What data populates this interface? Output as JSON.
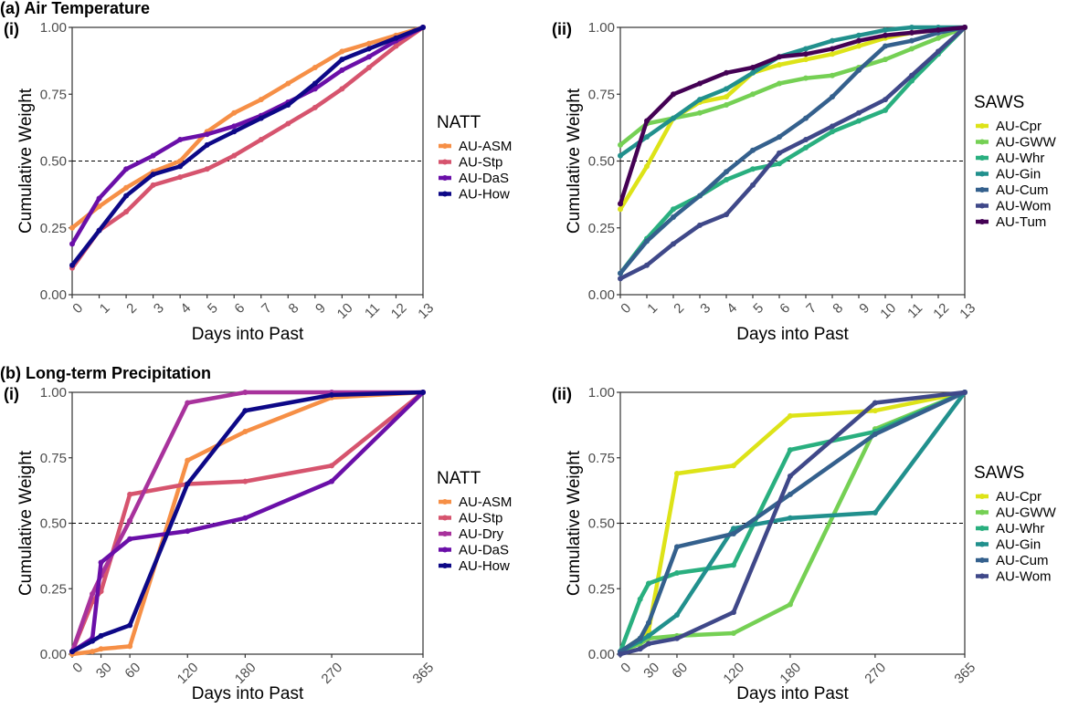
{
  "figure": {
    "section_a_title": "(a) Air Temperature",
    "section_b_title": "(b) Long-term Precipitation"
  },
  "chart_data": [
    {
      "id": "a-i",
      "type": "line",
      "panel_label": "(i)",
      "section": "(a) Air Temperature",
      "xlabel": "Days into Past",
      "ylabel": "Cumulative Weight",
      "xlim": [
        0,
        13
      ],
      "ylim": [
        0,
        1
      ],
      "xticks": [
        0,
        1,
        2,
        3,
        4,
        5,
        6,
        7,
        8,
        9,
        10,
        11,
        12,
        13
      ],
      "xtick_labels": [
        "0",
        "1",
        "2",
        "3",
        "4",
        "5",
        "6",
        "7",
        "8",
        "9",
        "10",
        "11",
        "12",
        "13"
      ],
      "yticks": [
        0,
        0.25,
        0.5,
        0.75,
        1.0
      ],
      "ytick_labels": [
        "0.00",
        "0.25",
        "0.50",
        "0.75",
        "1.00"
      ],
      "reference_line": {
        "y": 0.5,
        "style": "dashed"
      },
      "grid": false,
      "legend": {
        "title": "NATT",
        "position": "right"
      },
      "x": [
        0,
        1,
        2,
        3,
        4,
        5,
        6,
        7,
        8,
        9,
        10,
        11,
        12,
        13
      ],
      "series": [
        {
          "name": "AU-ASM",
          "color": "#f68f46",
          "values": [
            0.25,
            0.33,
            0.4,
            0.46,
            0.5,
            0.61,
            0.68,
            0.73,
            0.79,
            0.85,
            0.91,
            0.94,
            0.97,
            1.0
          ]
        },
        {
          "name": "AU-Stp",
          "color": "#d6546e",
          "values": [
            0.1,
            0.24,
            0.31,
            0.41,
            0.44,
            0.47,
            0.52,
            0.58,
            0.64,
            0.7,
            0.77,
            0.85,
            0.93,
            1.0
          ]
        },
        {
          "name": "AU-DaS",
          "color": "#6a0fa8",
          "values": [
            0.19,
            0.36,
            0.47,
            0.52,
            0.58,
            0.6,
            0.63,
            0.67,
            0.72,
            0.77,
            0.84,
            0.89,
            0.95,
            1.0
          ]
        },
        {
          "name": "AU-How",
          "color": "#0d0887",
          "values": [
            0.11,
            0.24,
            0.37,
            0.45,
            0.48,
            0.56,
            0.61,
            0.66,
            0.71,
            0.79,
            0.88,
            0.92,
            0.96,
            1.0
          ]
        }
      ]
    },
    {
      "id": "a-ii",
      "type": "line",
      "panel_label": "(ii)",
      "section": "(a) Air Temperature",
      "xlabel": "Days into Past",
      "ylabel": "Cumulative Weight",
      "xlim": [
        0,
        13
      ],
      "ylim": [
        0,
        1
      ],
      "xticks": [
        0,
        1,
        2,
        3,
        4,
        5,
        6,
        7,
        8,
        9,
        10,
        11,
        12,
        13
      ],
      "xtick_labels": [
        "0",
        "1",
        "2",
        "3",
        "4",
        "5",
        "6",
        "7",
        "8",
        "9",
        "10",
        "11",
        "12",
        "13"
      ],
      "yticks": [
        0,
        0.25,
        0.5,
        0.75,
        1.0
      ],
      "ytick_labels": [
        "0.00",
        "0.25",
        "0.50",
        "0.75",
        "1.00"
      ],
      "reference_line": {
        "y": 0.5,
        "style": "dashed"
      },
      "grid": false,
      "legend": {
        "title": "SAWS",
        "position": "right"
      },
      "x": [
        0,
        1,
        2,
        3,
        4,
        5,
        6,
        7,
        8,
        9,
        10,
        11,
        12,
        13
      ],
      "series": [
        {
          "name": "AU-Cpr",
          "color": "#dde318",
          "values": [
            0.32,
            0.48,
            0.66,
            0.72,
            0.74,
            0.83,
            0.86,
            0.88,
            0.9,
            0.93,
            0.96,
            0.98,
            0.99,
            1.0
          ]
        },
        {
          "name": "AU-GWW",
          "color": "#75d054",
          "values": [
            0.56,
            0.64,
            0.66,
            0.68,
            0.71,
            0.75,
            0.79,
            0.81,
            0.82,
            0.85,
            0.88,
            0.92,
            0.96,
            1.0
          ]
        },
        {
          "name": "AU-Whr",
          "color": "#29af7f",
          "values": [
            0.08,
            0.21,
            0.32,
            0.37,
            0.43,
            0.47,
            0.49,
            0.55,
            0.61,
            0.65,
            0.69,
            0.8,
            0.9,
            1.0
          ]
        },
        {
          "name": "AU-Gin",
          "color": "#21908d",
          "values": [
            0.52,
            0.59,
            0.66,
            0.73,
            0.77,
            0.83,
            0.89,
            0.92,
            0.95,
            0.97,
            0.99,
            1.0,
            1.0,
            1.0
          ]
        },
        {
          "name": "AU-Cum",
          "color": "#34608d",
          "values": [
            0.08,
            0.2,
            0.29,
            0.37,
            0.46,
            0.54,
            0.59,
            0.66,
            0.74,
            0.84,
            0.93,
            0.95,
            0.98,
            1.0
          ]
        },
        {
          "name": "AU-Wom",
          "color": "#3f4889",
          "values": [
            0.06,
            0.11,
            0.19,
            0.26,
            0.3,
            0.41,
            0.53,
            0.58,
            0.63,
            0.68,
            0.73,
            0.82,
            0.91,
            1.0
          ]
        },
        {
          "name": "AU-Tum",
          "color": "#440154",
          "values": [
            0.34,
            0.65,
            0.75,
            0.79,
            0.83,
            0.85,
            0.89,
            0.9,
            0.92,
            0.95,
            0.97,
            0.98,
            0.99,
            1.0
          ]
        }
      ]
    },
    {
      "id": "b-i",
      "type": "line",
      "panel_label": "(i)",
      "section": "(b) Long-term Precipitation",
      "xlabel": "Days into Past",
      "ylabel": "Cumulative Weight",
      "xlim": [
        0,
        365
      ],
      "ylim": [
        0,
        1
      ],
      "xticks": [
        0,
        30,
        60,
        120,
        180,
        270,
        365
      ],
      "xtick_labels": [
        "0",
        "30",
        "60",
        "120",
        "180",
        "270",
        "365"
      ],
      "yticks": [
        0,
        0.25,
        0.5,
        0.75,
        1.0
      ],
      "ytick_labels": [
        "0.00",
        "0.25",
        "0.50",
        "0.75",
        "1.00"
      ],
      "reference_line": {
        "y": 0.5,
        "style": "dashed"
      },
      "grid": false,
      "legend": {
        "title": "NATT",
        "position": "right"
      },
      "x": [
        0,
        21,
        30,
        60,
        120,
        180,
        270,
        365
      ],
      "series": [
        {
          "name": "AU-ASM",
          "color": "#f68f46",
          "values": [
            0.0,
            0.01,
            0.02,
            0.03,
            0.74,
            0.85,
            0.98,
            1.0
          ]
        },
        {
          "name": "AU-Stp",
          "color": "#d6546e",
          "values": [
            0.01,
            0.2,
            0.24,
            0.61,
            0.65,
            0.66,
            0.72,
            1.0
          ]
        },
        {
          "name": "AU-Dry",
          "color": "#a8329c",
          "values": [
            0.01,
            0.23,
            0.3,
            0.51,
            0.96,
            1.0,
            1.0,
            1.0
          ]
        },
        {
          "name": "AU-DaS",
          "color": "#6a0fa8",
          "values": [
            0.01,
            0.06,
            0.35,
            0.44,
            0.47,
            0.52,
            0.66,
            1.0
          ]
        },
        {
          "name": "AU-How",
          "color": "#0d0887",
          "values": [
            0.01,
            0.05,
            0.07,
            0.11,
            0.65,
            0.93,
            0.99,
            1.0
          ]
        }
      ]
    },
    {
      "id": "b-ii",
      "type": "line",
      "panel_label": "(ii)",
      "section": "(b) Long-term Precipitation",
      "xlabel": "Days into Past",
      "ylabel": "Cumulative Weight",
      "xlim": [
        0,
        365
      ],
      "ylim": [
        0,
        1
      ],
      "xticks": [
        0,
        30,
        60,
        120,
        180,
        270,
        365
      ],
      "xtick_labels": [
        "0",
        "30",
        "60",
        "120",
        "180",
        "270",
        "365"
      ],
      "yticks": [
        0,
        0.25,
        0.5,
        0.75,
        1.0
      ],
      "ytick_labels": [
        "0.00",
        "0.25",
        "0.50",
        "0.75",
        "1.00"
      ],
      "reference_line": {
        "y": 0.5,
        "style": "dashed"
      },
      "grid": false,
      "legend": {
        "title": "SAWS",
        "position": "right"
      },
      "x": [
        0,
        21,
        30,
        60,
        120,
        180,
        270,
        365
      ],
      "series": [
        {
          "name": "AU-Cpr",
          "color": "#dde318",
          "values": [
            0.01,
            0.06,
            0.09,
            0.69,
            0.72,
            0.91,
            0.93,
            1.0
          ]
        },
        {
          "name": "AU-GWW",
          "color": "#75d054",
          "values": [
            0.01,
            0.04,
            0.06,
            0.07,
            0.08,
            0.19,
            0.86,
            1.0
          ]
        },
        {
          "name": "AU-Whr",
          "color": "#29af7f",
          "values": [
            0.01,
            0.21,
            0.27,
            0.31,
            0.34,
            0.78,
            0.85,
            1.0
          ]
        },
        {
          "name": "AU-Gin",
          "color": "#21908d",
          "values": [
            0.01,
            0.05,
            0.07,
            0.15,
            0.48,
            0.52,
            0.54,
            1.0
          ]
        },
        {
          "name": "AU-Cum",
          "color": "#34608d",
          "values": [
            0.01,
            0.06,
            0.12,
            0.41,
            0.46,
            0.61,
            0.84,
            1.0
          ]
        },
        {
          "name": "AU-Wom",
          "color": "#3f4889",
          "values": [
            0.0,
            0.02,
            0.04,
            0.06,
            0.16,
            0.68,
            0.96,
            1.0
          ]
        }
      ]
    }
  ]
}
